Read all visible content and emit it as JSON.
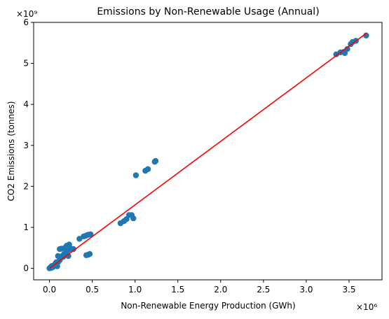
{
  "chart_data": {
    "type": "scatter",
    "title": "Emissions by Non-Renewable Usage (Annual)",
    "xlabel": "Non-Renewable Energy Production (GWh)",
    "ylabel": "CO2 Emissions (tonnes)",
    "x_multiplier": "×10⁶",
    "y_multiplier": "×10⁹",
    "xlim": [
      -0.185,
      3.885
    ],
    "ylim": [
      -0.28,
      6.0
    ],
    "x_ticks": [
      0.0,
      0.5,
      1.0,
      1.5,
      2.0,
      2.5,
      3.0,
      3.5
    ],
    "x_tick_labels": [
      "0.0",
      "0.5",
      "1.0",
      "1.5",
      "2.0",
      "2.5",
      "3.0",
      "3.5"
    ],
    "y_ticks": [
      0,
      1,
      2,
      3,
      4,
      5,
      6
    ],
    "y_tick_labels": [
      "0",
      "1",
      "2",
      "3",
      "4",
      "5",
      "6"
    ],
    "grid": false,
    "colors": {
      "points": "#1f77b4",
      "fit_line": "#ff0000"
    },
    "points": [
      [
        0.0,
        0.0
      ],
      [
        0.01,
        0.02
      ],
      [
        0.02,
        0.04
      ],
      [
        0.03,
        0.06
      ],
      [
        0.05,
        0.05
      ],
      [
        0.06,
        0.08
      ],
      [
        0.08,
        0.1
      ],
      [
        0.09,
        0.05
      ],
      [
        0.1,
        0.15
      ],
      [
        0.12,
        0.2
      ],
      [
        0.13,
        0.25
      ],
      [
        0.15,
        0.3
      ],
      [
        0.16,
        0.28
      ],
      [
        0.17,
        0.35
      ],
      [
        0.19,
        0.38
      ],
      [
        0.2,
        0.42
      ],
      [
        0.22,
        0.45
      ],
      [
        0.18,
        0.5
      ],
      [
        0.14,
        0.48
      ],
      [
        0.12,
        0.47
      ],
      [
        0.2,
        0.55
      ],
      [
        0.23,
        0.58
      ],
      [
        0.25,
        0.48
      ],
      [
        0.28,
        0.47
      ],
      [
        0.22,
        0.3
      ],
      [
        0.1,
        0.3
      ],
      [
        0.08,
        0.15
      ],
      [
        0.07,
        0.12
      ],
      [
        0.04,
        0.03
      ],
      [
        0.02,
        0.01
      ],
      [
        0.35,
        0.72
      ],
      [
        0.4,
        0.78
      ],
      [
        0.43,
        0.8
      ],
      [
        0.45,
        0.82
      ],
      [
        0.48,
        0.83
      ],
      [
        0.43,
        0.32
      ],
      [
        0.45,
        0.33
      ],
      [
        0.47,
        0.35
      ],
      [
        0.83,
        1.1
      ],
      [
        0.87,
        1.15
      ],
      [
        0.9,
        1.2
      ],
      [
        0.93,
        1.3
      ],
      [
        0.96,
        1.3
      ],
      [
        0.98,
        1.22
      ],
      [
        1.01,
        2.27
      ],
      [
        1.12,
        2.38
      ],
      [
        1.15,
        2.42
      ],
      [
        1.23,
        2.6
      ],
      [
        1.24,
        2.62
      ],
      [
        3.35,
        5.22
      ],
      [
        3.4,
        5.27
      ],
      [
        3.44,
        5.28
      ],
      [
        3.45,
        5.25
      ],
      [
        3.48,
        5.35
      ],
      [
        3.52,
        5.47
      ],
      [
        3.54,
        5.52
      ],
      [
        3.58,
        5.55
      ],
      [
        3.7,
        5.68
      ]
    ],
    "fit_line": {
      "x": [
        0.0,
        3.7
      ],
      "y": [
        0.0,
        5.73
      ]
    }
  }
}
